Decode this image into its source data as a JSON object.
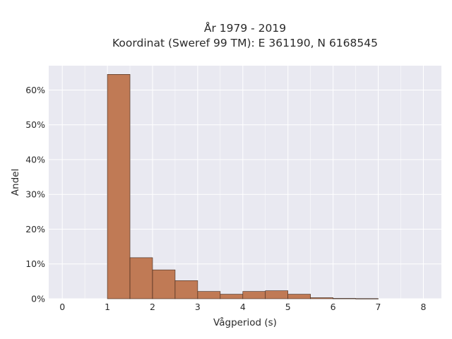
{
  "chart_data": {
    "type": "bar",
    "title": [
      "År 1979 - 2019",
      "Koordinat (Sweref 99 TM): E 361190, N 6168545"
    ],
    "xlabel": "Vågperiod (s)",
    "ylabel": "Andel",
    "xlim": [
      -0.3,
      8.4
    ],
    "ylim": [
      0,
      0.67
    ],
    "xticks": [
      0,
      1,
      2,
      3,
      4,
      5,
      6,
      7,
      8
    ],
    "xtick_labels": [
      "0",
      "1",
      "2",
      "3",
      "4",
      "5",
      "6",
      "7",
      "8"
    ],
    "yticks": [
      0,
      0.1,
      0.2,
      0.3,
      0.4,
      0.5,
      0.6
    ],
    "ytick_labels": [
      "0%",
      "10%",
      "20%",
      "30%",
      "40%",
      "50%",
      "60%"
    ],
    "bin_width": 0.5,
    "bins": [
      {
        "x0": 1.0,
        "x1": 1.5,
        "value": 0.645
      },
      {
        "x0": 1.5,
        "x1": 2.0,
        "value": 0.118
      },
      {
        "x0": 2.0,
        "x1": 2.5,
        "value": 0.083
      },
      {
        "x0": 2.5,
        "x1": 3.0,
        "value": 0.052
      },
      {
        "x0": 3.0,
        "x1": 3.5,
        "value": 0.021
      },
      {
        "x0": 3.5,
        "x1": 4.0,
        "value": 0.013
      },
      {
        "x0": 4.0,
        "x1": 4.5,
        "value": 0.021
      },
      {
        "x0": 4.5,
        "x1": 5.0,
        "value": 0.023
      },
      {
        "x0": 5.0,
        "x1": 5.5,
        "value": 0.013
      },
      {
        "x0": 5.5,
        "x1": 6.0,
        "value": 0.003
      },
      {
        "x0": 6.0,
        "x1": 6.5,
        "value": 0.001
      },
      {
        "x0": 6.5,
        "x1": 7.0,
        "value": 0.0005
      }
    ],
    "grid": true,
    "colors": {
      "bar_fill": "#c07a55",
      "bar_edge": "#3a2418",
      "plot_background": "#e9e9f1",
      "grid": "#ffffff"
    }
  }
}
